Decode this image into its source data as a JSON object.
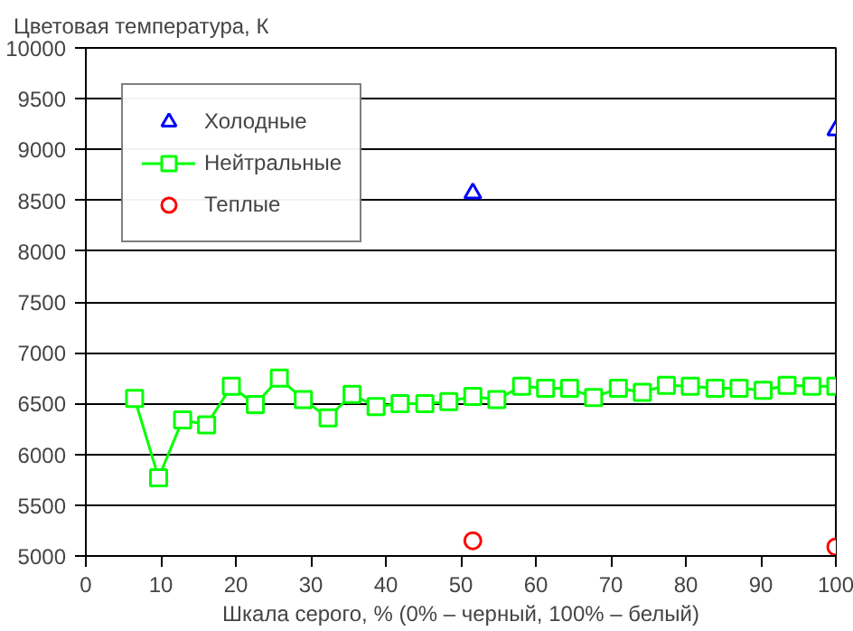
{
  "chart_data": {
    "type": "line",
    "title": "Цветовая температура, К",
    "xlabel": "Шкала серого, % (0% – черный, 100% – белый)",
    "xlim": [
      0,
      100
    ],
    "xticks": [
      0,
      10,
      20,
      30,
      40,
      50,
      60,
      70,
      80,
      90,
      100
    ],
    "ylim": [
      5000,
      10000
    ],
    "yticks": [
      5000,
      5500,
      6000,
      6500,
      7000,
      7500,
      8000,
      8500,
      9000,
      9500,
      10000
    ],
    "grid": "y",
    "legend": "top left",
    "series": [
      {
        "name": "Холодные",
        "type": "scatter",
        "color": "#0000ff",
        "marker": "triangle",
        "x": [
          51.6,
          100
        ],
        "values": [
          8570,
          9190
        ]
      },
      {
        "name": "Нейтральные",
        "color": "#00ff00",
        "marker": "square",
        "x": [
          6.5,
          9.7,
          12.9,
          16.1,
          19.4,
          22.6,
          25.8,
          29.0,
          32.3,
          35.5,
          38.7,
          41.9,
          45.2,
          48.4,
          51.6,
          54.8,
          58.1,
          61.3,
          64.5,
          67.7,
          71.0,
          74.2,
          77.4,
          80.6,
          83.9,
          87.1,
          90.3,
          93.5,
          96.8,
          100
        ],
        "values": [
          6550,
          5770,
          6340,
          6290,
          6670,
          6490,
          6750,
          6540,
          6360,
          6590,
          6470,
          6500,
          6500,
          6520,
          6570,
          6540,
          6670,
          6650,
          6650,
          6560,
          6650,
          6610,
          6680,
          6670,
          6650,
          6650,
          6630,
          6680,
          6670,
          6670
        ]
      },
      {
        "name": "Теплые",
        "type": "scatter",
        "color": "#ff0000",
        "marker": "circle",
        "x": [
          51.6,
          100
        ],
        "values": [
          5150,
          5090
        ]
      }
    ]
  }
}
